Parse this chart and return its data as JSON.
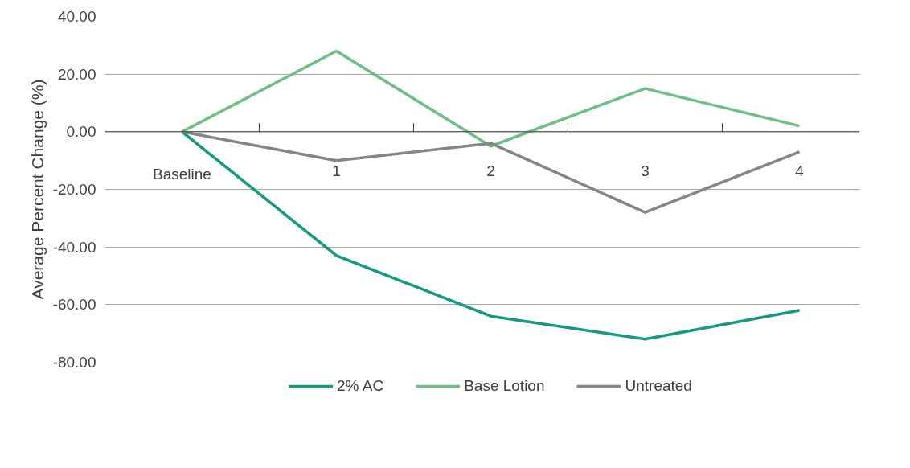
{
  "chart_data": {
    "type": "line",
    "ylabel": "Average Percent Change (%)",
    "categories": [
      "Baseline",
      "1",
      "2",
      "3",
      "4"
    ],
    "series": [
      {
        "name": "2% AC",
        "color": "#139b80",
        "values": [
          0,
          -43,
          -64,
          -72,
          -62
        ]
      },
      {
        "name": "Base Lotion",
        "color": "#6dbf86",
        "values": [
          0,
          28,
          -5,
          15,
          2
        ]
      },
      {
        "name": "Untreated",
        "color": "#858585",
        "values": [
          0,
          -10,
          -4,
          -28,
          -7
        ]
      }
    ],
    "ylim": [
      -80,
      40
    ],
    "yticks": [
      {
        "value": -80,
        "label": "-80.00"
      },
      {
        "value": -60,
        "label": "-60.00"
      },
      {
        "value": -40,
        "label": "-40.00"
      },
      {
        "value": -20,
        "label": "-20.00"
      },
      {
        "value": 0,
        "label": "0.00"
      },
      {
        "value": 20,
        "label": "20.00"
      },
      {
        "value": 40,
        "label": "40.00"
      }
    ],
    "grid": "y",
    "legend": "bottom",
    "marker": "none",
    "line_style": "solid"
  }
}
